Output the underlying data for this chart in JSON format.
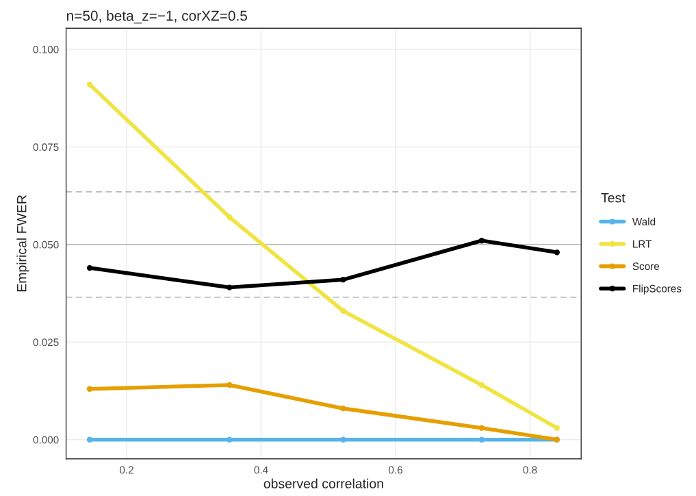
{
  "chart_data": {
    "type": "line",
    "title": "n=50, beta_z=−1, corXZ=0.5",
    "xlabel": "observed correlation",
    "ylabel": "Empirical FWER",
    "legend_title": "Test",
    "x": [
      0.145,
      0.353,
      0.522,
      0.728,
      0.84
    ],
    "series": [
      {
        "name": "Wald",
        "color": "#56b4e9",
        "values": [
          0.0,
          0.0,
          0.0,
          0.0,
          0.0
        ]
      },
      {
        "name": "LRT",
        "color": "#f0e442",
        "values": [
          0.091,
          0.057,
          0.033,
          0.014,
          0.003
        ]
      },
      {
        "name": "Score",
        "color": "#e69f00",
        "values": [
          0.013,
          0.014,
          0.008,
          0.003,
          0.0
        ]
      },
      {
        "name": "FlipScores",
        "color": "#000000",
        "values": [
          0.044,
          0.039,
          0.041,
          0.051,
          0.048
        ]
      }
    ],
    "xlim": [
      0.11,
      0.876
    ],
    "xticks": [
      0.2,
      0.4,
      0.6,
      0.8
    ],
    "ylim": [
      -0.0049,
      0.1054
    ],
    "yticks": [
      {
        "value": 0,
        "label": "0.000"
      },
      {
        "value": 0.025,
        "label": "0.025"
      },
      {
        "value": 0.05,
        "label": "0.050"
      },
      {
        "value": 0.075,
        "label": "0.075"
      },
      {
        "value": 0.1,
        "label": "0.100"
      }
    ],
    "ref_lines": [
      {
        "axis": "y",
        "value": 0.05,
        "color": "#bebebe",
        "line_style": "solid"
      },
      {
        "axis": "y",
        "value": 0.0635,
        "color": "#bebebe",
        "line_style": "dashed"
      },
      {
        "axis": "y",
        "value": 0.0365,
        "color": "#bebebe",
        "line_style": "dashed"
      }
    ],
    "grid": true,
    "legend": "right",
    "marker": "circle",
    "line_style": "solid"
  }
}
